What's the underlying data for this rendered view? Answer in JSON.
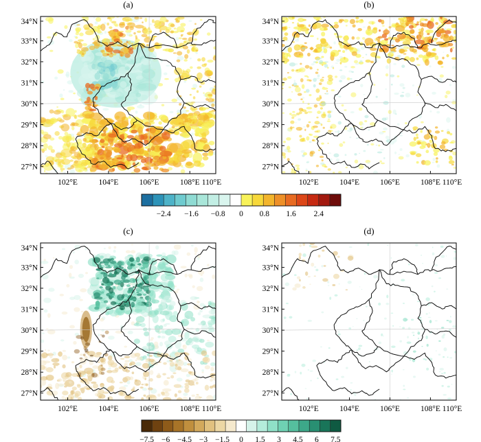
{
  "figure": {
    "panels": [
      {
        "id": "a",
        "label": "(a)"
      },
      {
        "id": "b",
        "label": "(b)"
      },
      {
        "id": "c",
        "label": "(c)"
      },
      {
        "id": "d",
        "label": "(d)"
      }
    ],
    "lat_labels": [
      "27°N",
      "28°N",
      "29°N",
      "30°N",
      "31°N",
      "32°N",
      "33°N",
      "34°N"
    ],
    "lon_labels": [
      "102°E",
      "104°E",
      "106°E",
      "108°E",
      "110°E"
    ],
    "colorbar_top": {
      "ticks": [
        "−2.4",
        "−1.6",
        "−0.8",
        "0",
        "0.8",
        "1.6",
        "2.4"
      ],
      "colors": [
        "#1d6fa0",
        "#2d93b8",
        "#4eb3c8",
        "#6fcbcf",
        "#8fdbd3",
        "#a9e6d9",
        "#c2eee4",
        "#d9f5ee",
        "#ffffff",
        "#f8f25a",
        "#f7d83a",
        "#f3b52c",
        "#ee9028",
        "#e86b22",
        "#dd4718",
        "#c62a12",
        "#a2190f",
        "#6e0c0a"
      ]
    },
    "colorbar_bottom": {
      "ticks": [
        "−7.5",
        "−6",
        "−4.5",
        "−3",
        "−1.5",
        "0",
        "1.5",
        "3",
        "4.5",
        "6",
        "7.5"
      ],
      "colors": [
        "#4a2a07",
        "#6f4210",
        "#8e5b1a",
        "#a87428",
        "#c08f3e",
        "#d3a95c",
        "#e1c17f",
        "#ecd7a4",
        "#f5e9cd",
        "#ffffff",
        "#d6f3ea",
        "#b4ecdb",
        "#8fe0c7",
        "#6fd1b3",
        "#55bf9e",
        "#3da889",
        "#298f72",
        "#197559",
        "#0f5a42"
      ]
    }
  }
}
